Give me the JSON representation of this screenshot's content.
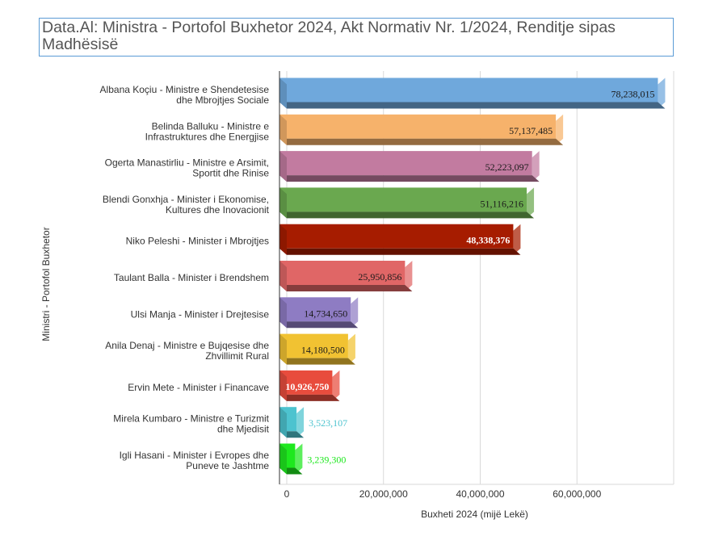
{
  "chart_data": {
    "type": "bar",
    "orientation": "horizontal",
    "style": "3d",
    "title": "Data.Al: Ministra - Portofol Buxhetor 2024, Akt Normativ Nr. 1/2024, Renditje sipas Madhësisë",
    "xlabel": "Buxheti 2024 (mijë Lekë)",
    "ylabel": "Ministri - Portofol Buxhetor",
    "xlim": [
      0,
      80000000
    ],
    "x_ticks": [
      "0",
      "20,000,000",
      "40,000,000",
      "60,000,000"
    ],
    "grid": true,
    "legend": "none",
    "bars": [
      {
        "label_lines": [
          "Albana Koçiu - Ministre e Shendetesise",
          "dhe Mbrojtjes Sociale"
        ],
        "value": 78238015,
        "value_label": "78,238,015",
        "color": "#6fa8dc",
        "label_color": "#1a1a1a",
        "label_bold": false
      },
      {
        "label_lines": [
          "Belinda Balluku - Ministre e",
          "Infrastruktures dhe Energjise"
        ],
        "value": 57137485,
        "value_label": "57,137,485",
        "color": "#f6b26b",
        "label_color": "#1a1a1a",
        "label_bold": false
      },
      {
        "label_lines": [
          "Ogerta Manastirliu - Ministre e Arsimit,",
          "Sportit dhe Rinise"
        ],
        "value": 52223097,
        "value_label": "52,223,097",
        "color": "#c27ba0",
        "label_color": "#1a1a1a",
        "label_bold": false
      },
      {
        "label_lines": [
          "Blendi Gonxhja - Minister i Ekonomise,",
          "Kultures dhe Inovacionit"
        ],
        "value": 51116216,
        "value_label": "51,116,216",
        "color": "#6aa84f",
        "label_color": "#1a1a1a",
        "label_bold": false
      },
      {
        "label_lines": [
          "Niko Peleshi - Minister i Mbrojtjes"
        ],
        "value": 48338376,
        "value_label": "48,338,376",
        "color": "#a61c00",
        "label_color": "#ffffff",
        "label_bold": true
      },
      {
        "label_lines": [
          "Taulant Balla - Minister i Brendshem"
        ],
        "value": 25950856,
        "value_label": "25,950,856",
        "color": "#e06666",
        "label_color": "#1a1a1a",
        "label_bold": false
      },
      {
        "label_lines": [
          "Ulsi Manja - Minister i Drejtesise"
        ],
        "value": 14734650,
        "value_label": "14,734,650",
        "color": "#8e7cc3",
        "label_color": "#1a1a1a",
        "label_bold": false
      },
      {
        "label_lines": [
          "Anila Denaj - Ministre e Bujqesise dhe",
          "Zhvillimit Rural"
        ],
        "value": 14180500,
        "value_label": "14,180,500",
        "color": "#f1c232",
        "label_color": "#1a1a1a",
        "label_bold": false
      },
      {
        "label_lines": [
          "Ervin Mete - Minister i Financave"
        ],
        "value": 10926750,
        "value_label": "10,926,750",
        "color": "#e84c3d",
        "label_color": "#ffffff",
        "label_bold": true
      },
      {
        "label_lines": [
          "Mirela Kumbaro - Ministre e Turizmit",
          "dhe Mjedisit"
        ],
        "value": 3523107,
        "value_label": "3,523,107",
        "color": "#4dc3cf",
        "label_color": "#4dc3cf",
        "label_bold": false
      },
      {
        "label_lines": [
          "Igli Hasani - Minister i Evropes dhe",
          "Puneve te Jashtme"
        ],
        "value": 3239300,
        "value_label": "3,239,300",
        "color": "#1ee81e",
        "label_color": "#1ee81e",
        "label_bold": false
      }
    ]
  }
}
